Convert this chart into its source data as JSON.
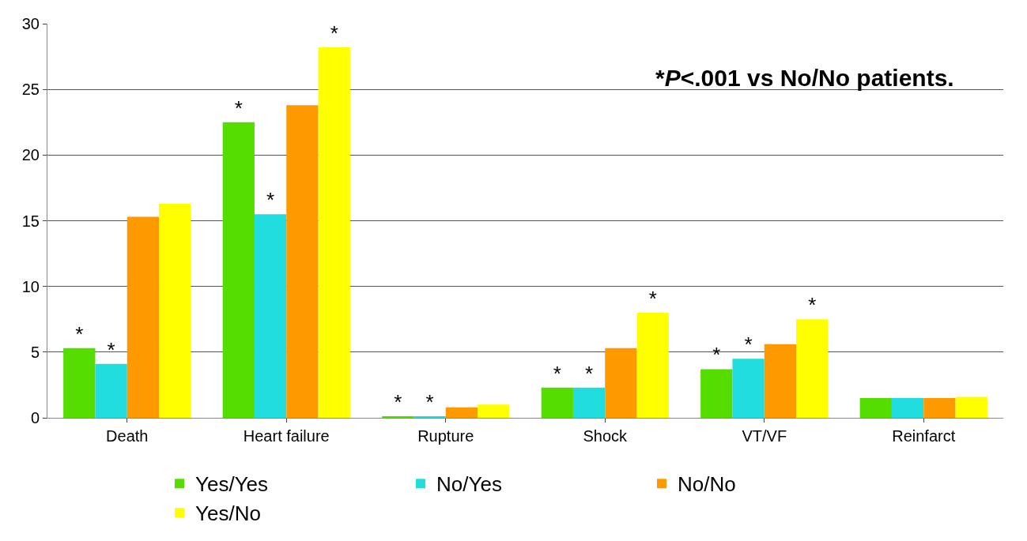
{
  "chart_data": {
    "type": "bar",
    "categories": [
      "Death",
      "Heart failure",
      "Rupture",
      "Shock",
      "VT/VF",
      "Reinfarct"
    ],
    "series": [
      {
        "name": "Yes/Yes",
        "color": "#55dd00",
        "values": [
          5.3,
          22.5,
          0.1,
          2.3,
          3.7,
          1.5
        ],
        "value_labels": [
          "*",
          "*",
          "*",
          "*",
          "*",
          null
        ]
      },
      {
        "name": "No/Yes",
        "color": "#22dddd",
        "values": [
          4.1,
          15.5,
          0.1,
          2.3,
          4.5,
          1.5
        ],
        "value_labels": [
          "*",
          "*",
          "*",
          "*",
          "*",
          null
        ]
      },
      {
        "name": "No/No",
        "color": "#ff9900",
        "values": [
          15.3,
          23.8,
          0.8,
          5.3,
          5.6,
          1.5
        ]
      },
      {
        "name": "Yes/No",
        "color": "#ffff00",
        "values": [
          16.3,
          28.2,
          1.0,
          8.0,
          7.5,
          1.6
        ],
        "value_labels": [
          null,
          "*",
          null,
          "*",
          "*",
          null
        ]
      }
    ],
    "ylim": [
      0,
      30
    ],
    "yticks": [
      0,
      5,
      10,
      15,
      20,
      25,
      30
    ],
    "grid": "y",
    "legend": "bottom",
    "annotations": [
      "*P<.001 vs No/No patients."
    ]
  }
}
